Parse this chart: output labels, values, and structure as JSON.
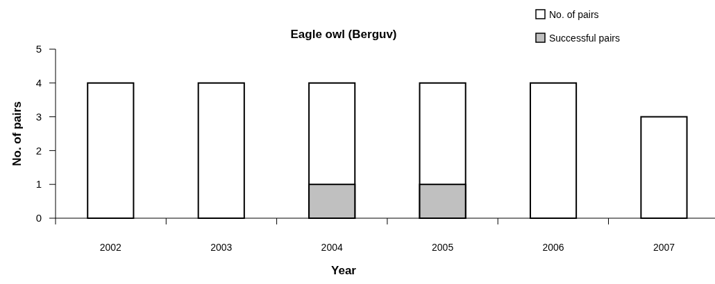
{
  "chart_data": {
    "type": "bar",
    "title": "Eagle owl (Berguv)",
    "xlabel": "Year",
    "ylabel": "No. of pairs",
    "categories": [
      "2002",
      "2003",
      "2004",
      "2005",
      "2006",
      "2007"
    ],
    "series": [
      {
        "name": "No. of pairs",
        "color": "#ffffff",
        "values": [
          4,
          4,
          4,
          4,
          4,
          3
        ]
      },
      {
        "name": "Successful pairs",
        "color": "#c0c0c0",
        "values": [
          0,
          0,
          1,
          1,
          0,
          0
        ]
      }
    ],
    "ylim": [
      0,
      5
    ],
    "yticks": [
      0,
      1,
      2,
      3,
      4,
      5
    ],
    "grid": false,
    "legend": "top right"
  }
}
